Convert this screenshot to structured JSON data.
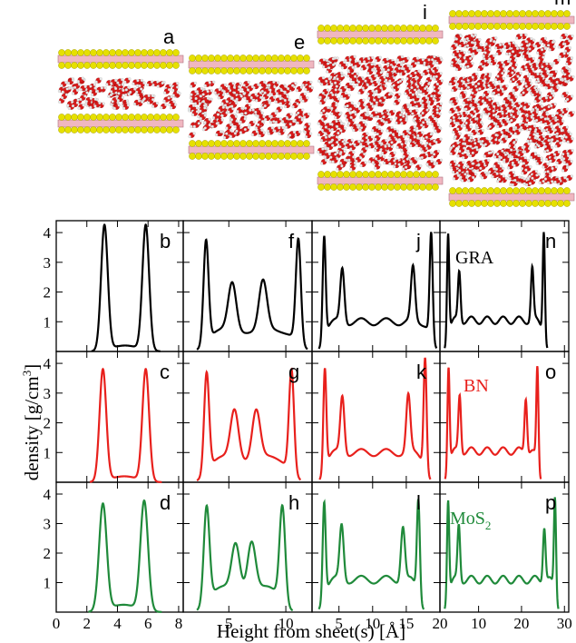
{
  "figure": {
    "snapshot_labels": [
      "a",
      "e",
      "i",
      "m"
    ],
    "panel_labels": [
      [
        "b",
        "f",
        "j",
        "n"
      ],
      [
        "c",
        "g",
        "k",
        "o"
      ],
      [
        "d",
        "h",
        "l",
        "p"
      ]
    ],
    "materials": [
      {
        "name": "GRA",
        "color": "#000000"
      },
      {
        "name": "BN",
        "color": "#e8201c"
      },
      {
        "name": "MoS",
        "sub": "2",
        "color": "#1f8a3a"
      }
    ],
    "xlabel": "Height from sheet(s) [Å]",
    "ylabel": "density [g/cm",
    "ylabel_sup": "3",
    "ylabel_close": "]",
    "colors": {
      "sheet_yellow": "#e6e000",
      "sheet_pink": "#f0b7c0",
      "oxygen": "#d81a1a",
      "hydrogen": "#e8e8e8"
    }
  },
  "chart_data": {
    "type": "line",
    "ylim": [
      0,
      4.4
    ],
    "yticks": [
      1,
      2,
      3,
      4
    ],
    "columns": [
      {
        "xlim": [
          0,
          8.3
        ],
        "xticks": [
          0,
          2,
          4,
          6,
          8
        ]
      },
      {
        "xlim": [
          1,
          12.3
        ],
        "xticks": [
          5,
          10
        ]
      },
      {
        "xlim": [
          1,
          20
        ],
        "xticks": [
          5,
          10,
          15,
          20
        ]
      },
      {
        "xlim": [
          1,
          31
        ],
        "xticks": [
          10,
          20,
          30
        ]
      }
    ],
    "panels": [
      {
        "id": "b",
        "row": 0,
        "col": 0,
        "material": "GRA",
        "peaks": [
          [
            3.15,
            4.2,
            0.22
          ],
          [
            5.85,
            4.2,
            0.22
          ]
        ],
        "plateau": 0,
        "x_range": [
          2.3,
          6.8
        ],
        "floor": 0.2
      },
      {
        "id": "f",
        "row": 0,
        "col": 1,
        "material": "GRA",
        "peaks": [
          [
            3.0,
            3.45,
            0.22
          ],
          [
            5.3,
            1.6,
            0.35
          ],
          [
            8.0,
            1.65,
            0.35
          ],
          [
            11.1,
            3.45,
            0.22
          ]
        ],
        "plateau": 0.7,
        "x_range": [
          2.2,
          11.9
        ],
        "floor": 0
      },
      {
        "id": "j",
        "row": 0,
        "col": 2,
        "material": "GRA",
        "peaks": [
          [
            2.8,
            3.45,
            0.22
          ],
          [
            5.5,
            1.8,
            0.3
          ],
          [
            16.0,
            1.8,
            0.3
          ],
          [
            18.7,
            3.5,
            0.22
          ]
        ],
        "plateau": 1.0,
        "x_range": [
          2.0,
          19.5
        ],
        "floor": 0
      },
      {
        "id": "n",
        "row": 0,
        "col": 3,
        "material": "GRA",
        "peaks": [
          [
            2.9,
            3.5,
            0.25
          ],
          [
            5.5,
            1.65,
            0.3
          ],
          [
            22.5,
            1.75,
            0.3
          ],
          [
            25.2,
            3.55,
            0.25
          ]
        ],
        "plateau": 1.05,
        "x_range": [
          2.1,
          26.0
        ],
        "floor": 0
      },
      {
        "id": "c",
        "row": 1,
        "col": 0,
        "material": "BN",
        "peaks": [
          [
            3.05,
            3.75,
            0.22
          ],
          [
            5.85,
            3.75,
            0.22
          ]
        ],
        "plateau": 0,
        "x_range": [
          2.2,
          6.9
        ],
        "floor": 0.2
      },
      {
        "id": "g",
        "row": 1,
        "col": 1,
        "material": "BN",
        "peaks": [
          [
            3.05,
            3.35,
            0.22
          ],
          [
            5.5,
            1.65,
            0.35
          ],
          [
            7.4,
            1.65,
            0.35
          ],
          [
            10.5,
            3.45,
            0.22
          ]
        ],
        "plateau": 0.8,
        "x_range": [
          2.2,
          11.3
        ],
        "floor": 0
      },
      {
        "id": "k",
        "row": 1,
        "col": 2,
        "material": "BN",
        "peaks": [
          [
            2.9,
            3.4,
            0.22
          ],
          [
            5.5,
            1.9,
            0.3
          ],
          [
            15.3,
            1.9,
            0.3
          ],
          [
            17.8,
            3.75,
            0.22
          ]
        ],
        "plateau": 1.0,
        "x_range": [
          2.1,
          18.6
        ],
        "floor": 0
      },
      {
        "id": "o",
        "row": 1,
        "col": 3,
        "material": "BN",
        "peaks": [
          [
            3.0,
            3.4,
            0.25
          ],
          [
            5.6,
            1.9,
            0.3
          ],
          [
            21.0,
            1.85,
            0.3
          ],
          [
            23.7,
            3.35,
            0.25
          ]
        ],
        "plateau": 1.05,
        "x_range": [
          2.2,
          24.5
        ],
        "floor": 0
      },
      {
        "id": "d",
        "row": 2,
        "col": 0,
        "material": "MoS2",
        "peaks": [
          [
            3.05,
            3.6,
            0.25
          ],
          [
            5.75,
            3.7,
            0.25
          ]
        ],
        "plateau": 0,
        "x_range": [
          2.1,
          6.9
        ],
        "floor": 0.25
      },
      {
        "id": "h",
        "row": 2,
        "col": 1,
        "material": "MoS2",
        "peaks": [
          [
            3.05,
            3.25,
            0.25
          ],
          [
            5.6,
            1.55,
            0.35
          ],
          [
            7.0,
            1.65,
            0.35
          ],
          [
            9.7,
            3.25,
            0.25
          ]
        ],
        "plateau": 0.8,
        "x_range": [
          2.2,
          10.6
        ],
        "floor": 0
      },
      {
        "id": "l",
        "row": 2,
        "col": 2,
        "material": "MoS2",
        "peaks": [
          [
            2.8,
            3.25,
            0.22
          ],
          [
            5.4,
            1.85,
            0.3
          ],
          [
            14.5,
            1.85,
            0.3
          ],
          [
            16.8,
            3.3,
            0.22
          ]
        ],
        "plateau": 1.1,
        "x_range": [
          2.0,
          17.6
        ],
        "floor": 0
      },
      {
        "id": "p",
        "row": 2,
        "col": 3,
        "material": "MoS2",
        "peaks": [
          [
            2.9,
            3.3,
            0.25
          ],
          [
            5.4,
            1.85,
            0.3
          ],
          [
            25.3,
            1.85,
            0.3
          ],
          [
            27.8,
            3.35,
            0.25
          ]
        ],
        "plateau": 1.1,
        "x_range": [
          2.1,
          28.6
        ],
        "floor": 0
      }
    ]
  }
}
